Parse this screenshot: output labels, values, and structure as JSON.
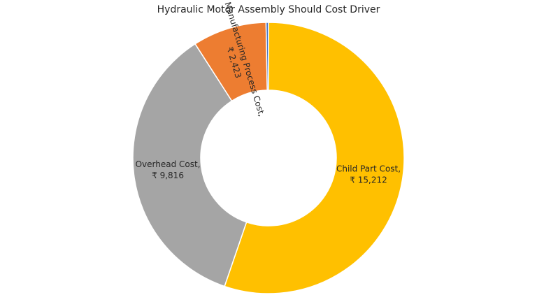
{
  "chart_data": {
    "type": "donut",
    "title": "Hydraulic Motor Assembly Should Cost Driver",
    "categories": [
      "Child Part Cost,",
      "Overhead Cost,",
      "Manufacturing Process Cost,",
      null
    ],
    "values": [
      15212,
      9816,
      2423,
      80
    ],
    "value_labels": [
      "₹ 15,212",
      "₹ 9,816",
      "₹ 2,423",
      null
    ],
    "colors": [
      "#FFC000",
      "#A5A5A5",
      "#ED7D31",
      "#4472C4"
    ]
  }
}
